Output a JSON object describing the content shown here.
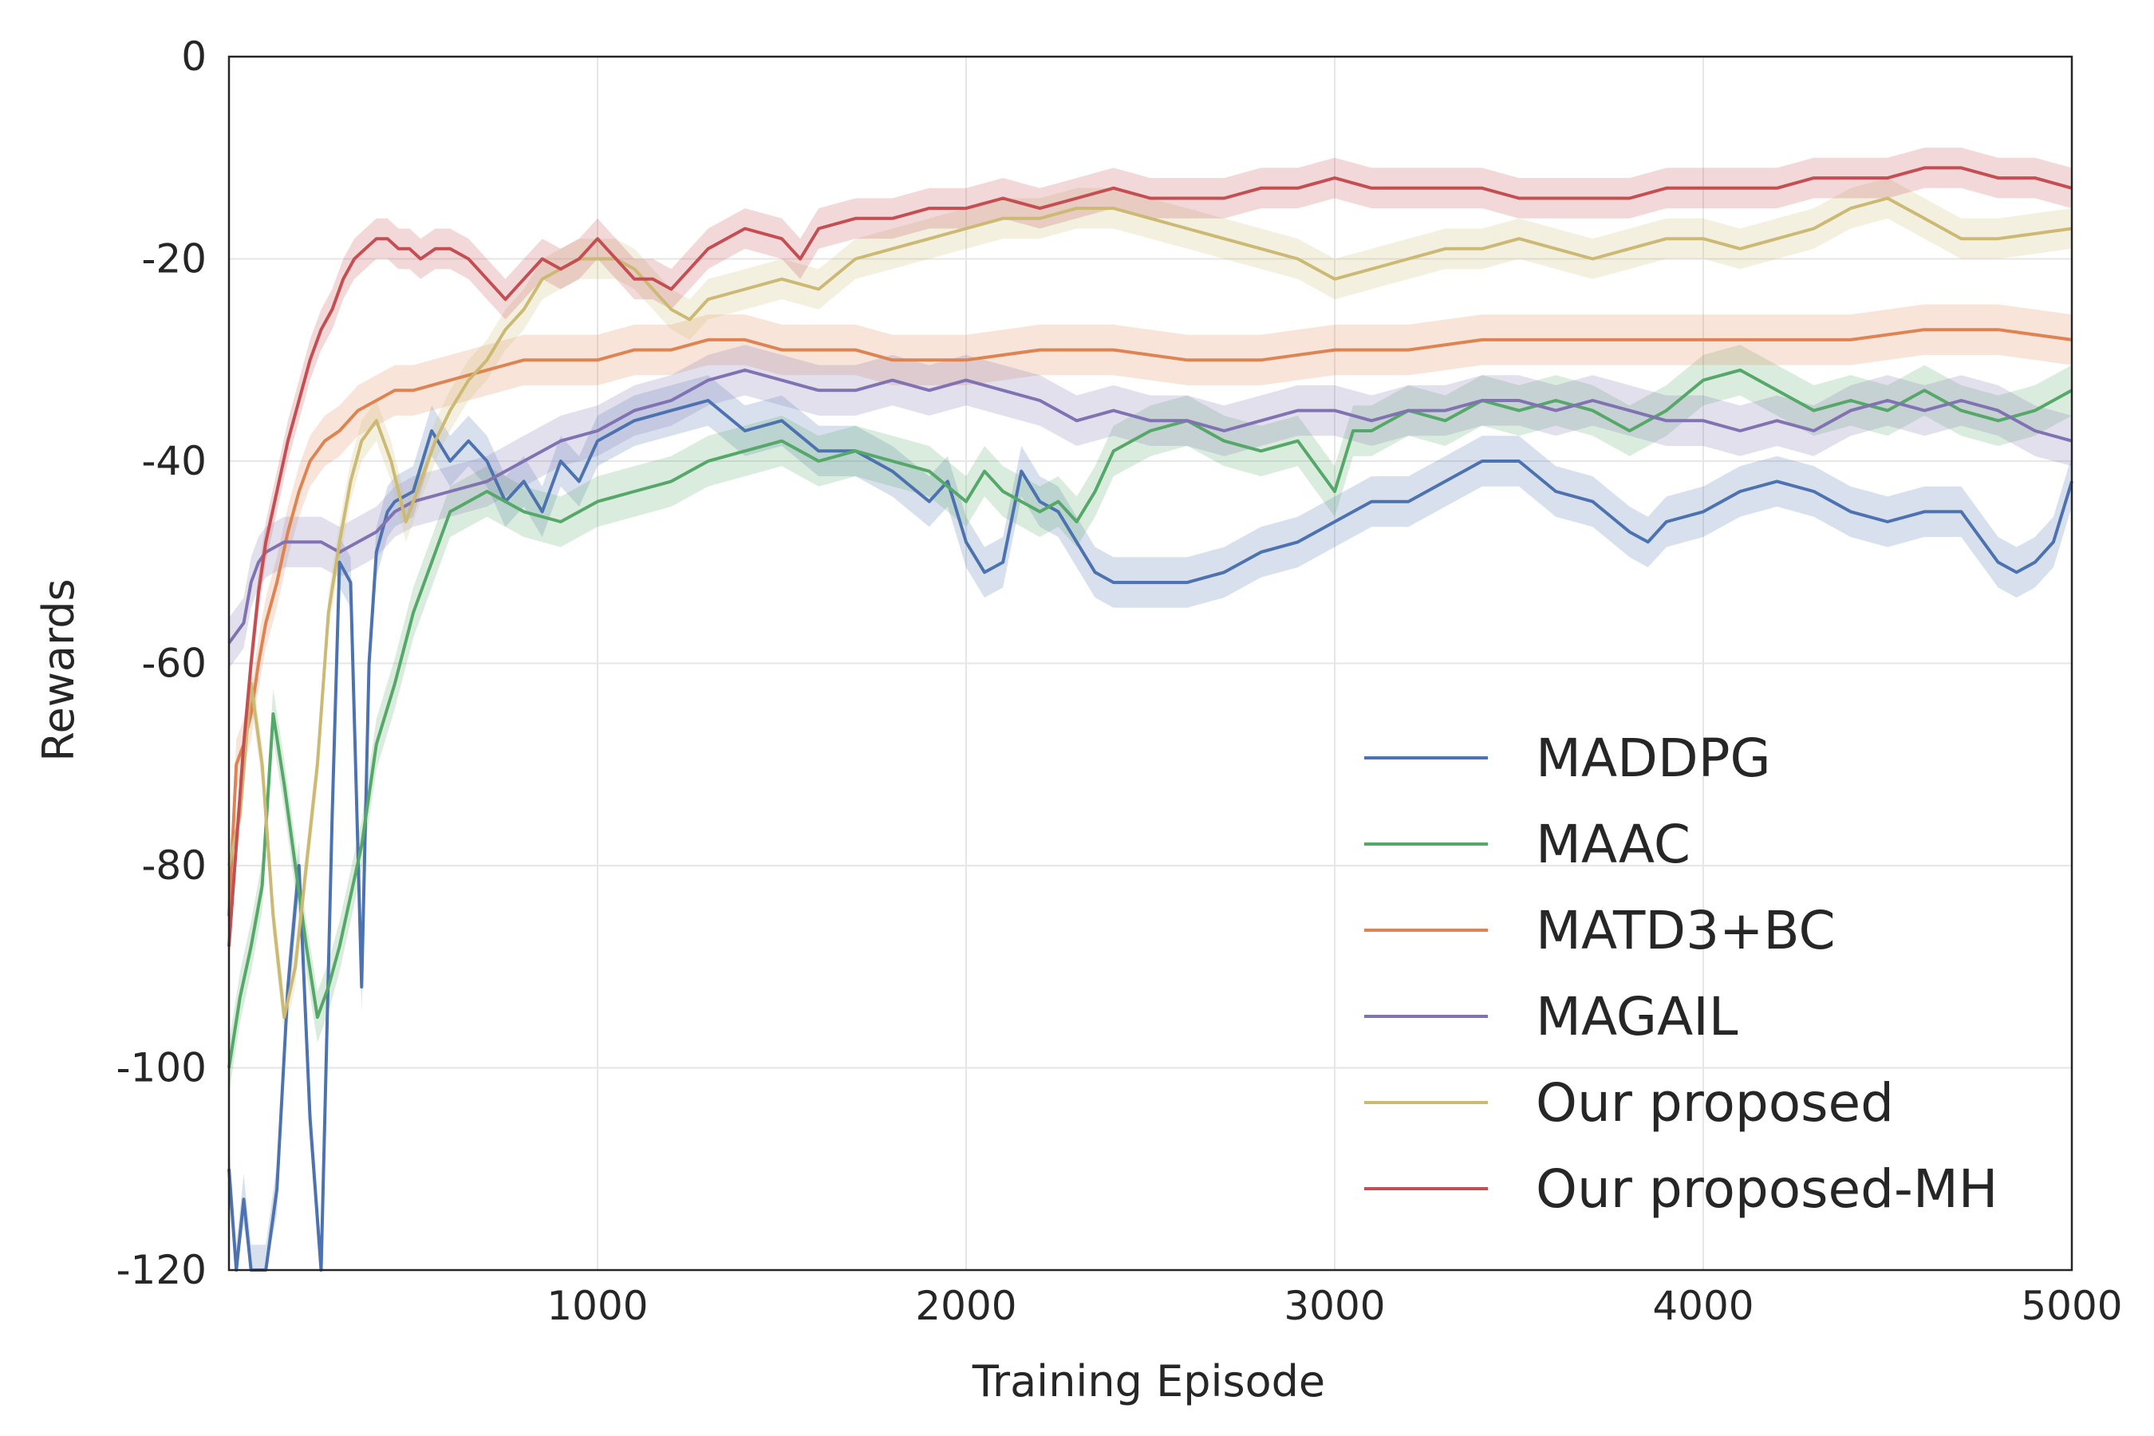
{
  "chart_data": {
    "type": "line",
    "title": "",
    "xlabel": "Training Episode",
    "ylabel": "Rewards",
    "xlim": [
      0,
      5000
    ],
    "ylim": [
      -120,
      0
    ],
    "xticks": [
      1000,
      2000,
      3000,
      4000,
      5000
    ],
    "yticks": [
      0,
      -20,
      -40,
      -60,
      -80,
      -100,
      -120
    ],
    "grid": true,
    "legend_position": "lower-right",
    "series": [
      {
        "name": "MADDPG",
        "color": "#4c72b0",
        "x": [
          0,
          20,
          40,
          60,
          80,
          100,
          130,
          160,
          190,
          220,
          250,
          280,
          300,
          330,
          360,
          380,
          400,
          430,
          450,
          500,
          550,
          600,
          650,
          700,
          750,
          800,
          850,
          900,
          950,
          1000,
          1100,
          1200,
          1300,
          1400,
          1500,
          1600,
          1700,
          1800,
          1900,
          1950,
          2000,
          2050,
          2100,
          2150,
          2200,
          2250,
          2300,
          2350,
          2400,
          2500,
          2600,
          2700,
          2800,
          2900,
          3000,
          3100,
          3200,
          3300,
          3400,
          3500,
          3600,
          3700,
          3800,
          3850,
          3900,
          4000,
          4100,
          4200,
          4300,
          4400,
          4500,
          4600,
          4700,
          4800,
          4850,
          4900,
          4950,
          5000
        ],
        "y": [
          -110,
          -120,
          -113,
          -120,
          -120,
          -120,
          -112,
          -92,
          -80,
          -105,
          -120,
          -75,
          -50,
          -52,
          -92,
          -60,
          -49,
          -45,
          -44,
          -43,
          -37,
          -40,
          -38,
          -40,
          -44,
          -42,
          -45,
          -40,
          -42,
          -38,
          -36,
          -35,
          -34,
          -37,
          -36,
          -39,
          -39,
          -41,
          -44,
          -42,
          -48,
          -51,
          -50,
          -41,
          -44,
          -45,
          -48,
          -51,
          -52,
          -52,
          -52,
          -51,
          -49,
          -48,
          -46,
          -44,
          -44,
          -42,
          -40,
          -40,
          -43,
          -44,
          -47,
          -48,
          -46,
          -45,
          -43,
          -42,
          -43,
          -45,
          -46,
          -45,
          -45,
          -50,
          -51,
          -50,
          -48,
          -42
        ],
        "band": 2.5
      },
      {
        "name": "MAAC",
        "color": "#55a868",
        "x": [
          0,
          30,
          60,
          90,
          120,
          150,
          180,
          210,
          240,
          270,
          300,
          330,
          360,
          400,
          450,
          500,
          550,
          600,
          700,
          800,
          900,
          1000,
          1100,
          1200,
          1300,
          1400,
          1500,
          1600,
          1700,
          1800,
          1900,
          2000,
          2050,
          2100,
          2150,
          2200,
          2250,
          2300,
          2350,
          2400,
          2500,
          2600,
          2700,
          2800,
          2900,
          3000,
          3050,
          3100,
          3200,
          3300,
          3400,
          3500,
          3600,
          3700,
          3800,
          3900,
          4000,
          4100,
          4200,
          4300,
          4400,
          4500,
          4600,
          4700,
          4800,
          4900,
          5000
        ],
        "y": [
          -100,
          -93,
          -88,
          -82,
          -65,
          -72,
          -80,
          -88,
          -95,
          -92,
          -88,
          -83,
          -78,
          -68,
          -62,
          -55,
          -50,
          -45,
          -43,
          -45,
          -46,
          -44,
          -43,
          -42,
          -40,
          -39,
          -38,
          -40,
          -39,
          -40,
          -41,
          -44,
          -41,
          -43,
          -44,
          -45,
          -44,
          -46,
          -43,
          -39,
          -37,
          -36,
          -38,
          -39,
          -38,
          -43,
          -37,
          -37,
          -35,
          -36,
          -34,
          -35,
          -34,
          -35,
          -37,
          -35,
          -32,
          -31,
          -33,
          -35,
          -34,
          -35,
          -33,
          -35,
          -36,
          -35,
          -33
        ],
        "band": 2.5
      },
      {
        "name": "MATD3+BC",
        "color": "#dd8452",
        "x": [
          0,
          20,
          40,
          60,
          80,
          100,
          130,
          160,
          190,
          220,
          260,
          300,
          350,
          400,
          450,
          500,
          600,
          700,
          800,
          900,
          1000,
          1100,
          1200,
          1300,
          1400,
          1500,
          1600,
          1700,
          1800,
          1900,
          2000,
          2200,
          2400,
          2600,
          2800,
          3000,
          3200,
          3400,
          3600,
          3800,
          4000,
          4200,
          4400,
          4600,
          4800,
          5000
        ],
        "y": [
          -85,
          -70,
          -68,
          -65,
          -60,
          -56,
          -52,
          -47,
          -43,
          -40,
          -38,
          -37,
          -35,
          -34,
          -33,
          -33,
          -32,
          -31,
          -30,
          -30,
          -30,
          -29,
          -29,
          -28,
          -28,
          -29,
          -29,
          -29,
          -30,
          -30,
          -30,
          -29,
          -29,
          -30,
          -30,
          -29,
          -29,
          -28,
          -28,
          -28,
          -28,
          -28,
          -28,
          -27,
          -27,
          -28
        ],
        "band": 2.5
      },
      {
        "name": "MAGAIL",
        "color": "#8172b2",
        "x": [
          0,
          20,
          40,
          60,
          80,
          100,
          150,
          200,
          250,
          300,
          350,
          400,
          450,
          500,
          600,
          700,
          800,
          900,
          1000,
          1100,
          1200,
          1300,
          1400,
          1500,
          1600,
          1700,
          1800,
          1900,
          2000,
          2100,
          2200,
          2300,
          2400,
          2500,
          2600,
          2700,
          2800,
          2900,
          3000,
          3100,
          3200,
          3300,
          3400,
          3500,
          3600,
          3700,
          3800,
          3900,
          4000,
          4100,
          4200,
          4300,
          4400,
          4500,
          4600,
          4700,
          4800,
          4900,
          5000
        ],
        "y": [
          -58,
          -57,
          -56,
          -52,
          -50,
          -49,
          -48,
          -48,
          -48,
          -49,
          -48,
          -47,
          -45,
          -44,
          -43,
          -42,
          -40,
          -38,
          -37,
          -35,
          -34,
          -32,
          -31,
          -32,
          -33,
          -33,
          -32,
          -33,
          -32,
          -33,
          -34,
          -36,
          -35,
          -36,
          -36,
          -37,
          -36,
          -35,
          -35,
          -36,
          -35,
          -35,
          -34,
          -34,
          -35,
          -34,
          -35,
          -36,
          -36,
          -37,
          -36,
          -37,
          -35,
          -34,
          -35,
          -34,
          -35,
          -37,
          -38
        ],
        "band": 2.5
      },
      {
        "name": "Our proposed",
        "color": "#ccb974",
        "x": [
          0,
          30,
          60,
          90,
          120,
          150,
          180,
          210,
          240,
          270,
          300,
          330,
          360,
          400,
          440,
          480,
          520,
          560,
          600,
          650,
          700,
          750,
          800,
          850,
          900,
          950,
          1000,
          1050,
          1100,
          1150,
          1200,
          1250,
          1300,
          1400,
          1500,
          1600,
          1700,
          1800,
          1900,
          2000,
          2100,
          2200,
          2300,
          2400,
          2500,
          2600,
          2700,
          2800,
          2900,
          3000,
          3100,
          3200,
          3300,
          3400,
          3500,
          3600,
          3700,
          3800,
          3900,
          4000,
          4100,
          4200,
          4300,
          4400,
          4500,
          4600,
          4700,
          4800,
          5000
        ],
        "y": [
          -80,
          -75,
          -62,
          -70,
          -85,
          -95,
          -90,
          -80,
          -70,
          -55,
          -48,
          -42,
          -38,
          -36,
          -40,
          -46,
          -42,
          -38,
          -35,
          -32,
          -30,
          -27,
          -25,
          -22,
          -21,
          -20,
          -20,
          -20,
          -21,
          -23,
          -25,
          -26,
          -24,
          -23,
          -22,
          -23,
          -20,
          -19,
          -18,
          -17,
          -16,
          -16,
          -15,
          -15,
          -16,
          -17,
          -18,
          -19,
          -20,
          -22,
          -21,
          -20,
          -19,
          -19,
          -18,
          -19,
          -20,
          -19,
          -18,
          -18,
          -19,
          -18,
          -17,
          -15,
          -14,
          -16,
          -18,
          -18,
          -17
        ],
        "band": 2.0
      },
      {
        "name": "Our proposed-MH",
        "color": "#c44e52",
        "x": [
          0,
          20,
          40,
          60,
          80,
          100,
          130,
          160,
          190,
          220,
          250,
          280,
          310,
          340,
          370,
          400,
          430,
          460,
          490,
          520,
          560,
          600,
          650,
          700,
          750,
          800,
          850,
          900,
          950,
          1000,
          1050,
          1100,
          1150,
          1200,
          1250,
          1300,
          1400,
          1500,
          1550,
          1600,
          1700,
          1800,
          1900,
          2000,
          2100,
          2200,
          2300,
          2400,
          2500,
          2600,
          2700,
          2800,
          2900,
          3000,
          3100,
          3200,
          3300,
          3400,
          3500,
          3600,
          3700,
          3800,
          3900,
          4000,
          4100,
          4200,
          4300,
          4400,
          4500,
          4600,
          4700,
          4800,
          4900,
          5000
        ],
        "y": [
          -88,
          -78,
          -68,
          -60,
          -53,
          -48,
          -43,
          -38,
          -34,
          -30,
          -27,
          -25,
          -22,
          -20,
          -19,
          -18,
          -18,
          -19,
          -19,
          -20,
          -19,
          -19,
          -20,
          -22,
          -24,
          -22,
          -20,
          -21,
          -20,
          -18,
          -20,
          -22,
          -22,
          -23,
          -21,
          -19,
          -17,
          -18,
          -20,
          -17,
          -16,
          -16,
          -15,
          -15,
          -14,
          -15,
          -14,
          -13,
          -14,
          -14,
          -14,
          -13,
          -13,
          -12,
          -13,
          -13,
          -13,
          -13,
          -14,
          -14,
          -14,
          -14,
          -13,
          -13,
          -13,
          -13,
          -12,
          -12,
          -12,
          -11,
          -11,
          -12,
          -12,
          -13
        ],
        "band": 2.0
      }
    ]
  }
}
